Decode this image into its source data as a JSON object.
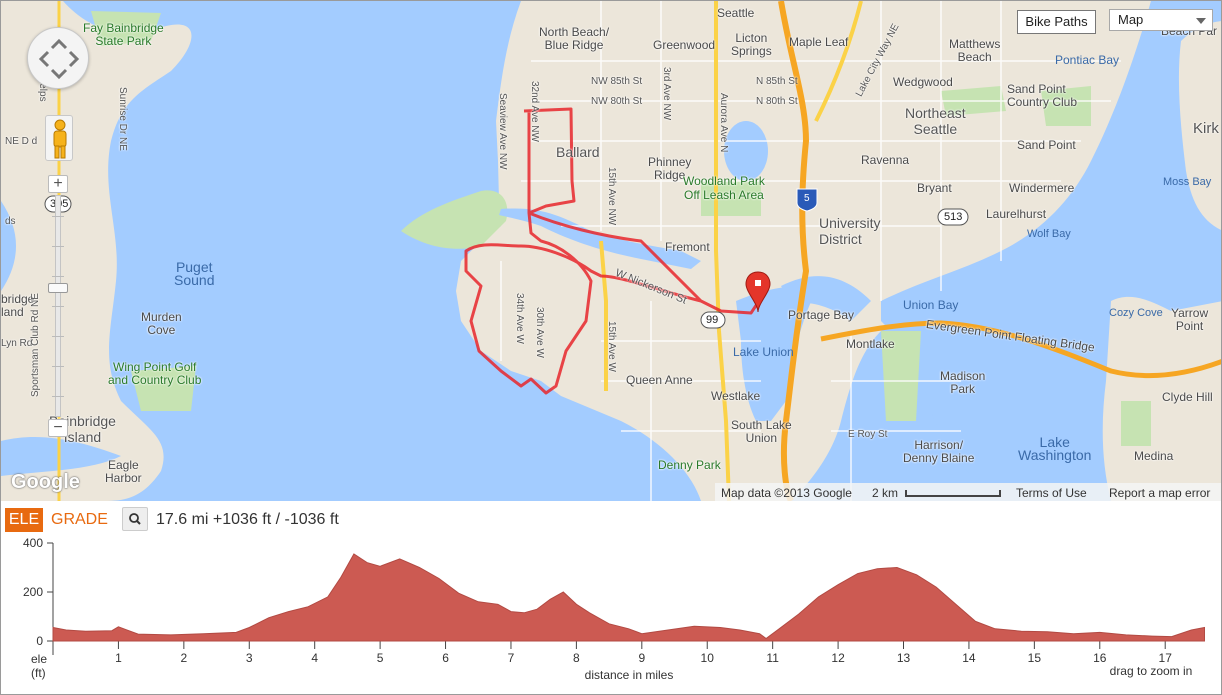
{
  "map": {
    "controls": {
      "zoom_in_label": "+",
      "zoom_out_label": "−",
      "bike_paths_label": "Bike Paths",
      "map_type_selected": "Map"
    },
    "logo": "Google",
    "attribution": {
      "map_data": "Map data ©2013 Google",
      "scale": "2 km",
      "terms": "Terms of Use",
      "report": "Report a map error"
    },
    "labels": {
      "seattle": "Seattle",
      "north_beach": "North Beach/\nBlue Ridge",
      "greenwood": "Greenwood",
      "licton": "Licton\nSprings",
      "maple_leaf": "Maple Leaf",
      "matthews": "Matthews\nBeach",
      "pontiac": "Pontiac Bay",
      "beach_park": "Beach Par",
      "fay": "Fay Bainbridge\nState Park",
      "nw85": "NW 85th St",
      "nw80": "NW 80th St",
      "n85": "N 85th St",
      "n80": "N 80th St",
      "wedgwood": "Wedgwood",
      "sand_point_cc": "Sand Point\nCountry Club",
      "northeast": "Northeast\nSeattle",
      "sand_point": "Sand Point",
      "kirk": "Kirk",
      "ballard": "Ballard",
      "phinney": "Phinney\nRidge",
      "ravenna": "Ravenna",
      "bryant": "Bryant",
      "windermere": "Windermere",
      "moss": "Moss Bay",
      "woodland": "Woodland Park\nOff Leash Area",
      "university": "University\nDistrict",
      "laurelhurst": "Laurelhurst",
      "wolf": "Wolf Bay",
      "fremont": "Fremont",
      "nickerson": "W Nickerson St",
      "puget": "Puget\nSound",
      "murden": "Murden\nCove",
      "union_bay": "Union Bay",
      "portage": "Portage Bay",
      "evergreen": "Evergreen Point Floating Bridge",
      "cozy": "Cozy Cove",
      "yarrow": "Yarrow\nPoint",
      "wing": "Wing Point Golf\nand Country Club",
      "lake_union": "Lake Union",
      "montlake": "Montlake",
      "queen_anne": "Queen Anne",
      "madison": "Madison\nPark",
      "clyde": "Clyde Hill",
      "bainbridge": "Bainbridge\nIsland",
      "bridge": "bridge\nland",
      "westlake": "Westlake",
      "south_lake": "South Lake\nUnion",
      "e_roy": "E Roy St",
      "harrison": "Harrison/\nDenny Blaine",
      "lake_wash": "Lake\nWashington",
      "eagle": "Eagle\nHarbor",
      "denny": "Denny Park",
      "medina": "Medina",
      "ne_dr": "NE D   d",
      "phelps": "Phelps",
      "sunrise": "Sunrise Dr NE",
      "seaview": "Seaview Ave NW",
      "ave32": "32nd Ave NW",
      "ave15": "15th Ave NW",
      "ave15w": "15th Ave W",
      "ave3": "3rd Ave NW",
      "aurora": "Aurora Ave N",
      "ave34": "34th Ave W",
      "ave30": "30th Ave W",
      "lake_city": "Lake City Way NE",
      "sportsman": "Sportsman Club Rd NE",
      "lyn": "Lyn Rd",
      "ds": "ds",
      "shield_305": "305",
      "shield_5": "5",
      "shield_513": "513",
      "shield_99": "99"
    }
  },
  "elevation": {
    "tab_ele": "ELE",
    "tab_grade": "GRADE",
    "stats": "17.6 mi +1036 ft / -1036 ft",
    "zoom_hint": "drag to zoom in"
  },
  "chart_data": {
    "type": "area",
    "xlabel": "distance in miles",
    "ylabel": "ele\n(ft)",
    "xlim": [
      0,
      17.7
    ],
    "ylim": [
      0,
      400
    ],
    "x_ticks": [
      1,
      2,
      3,
      4,
      5,
      6,
      7,
      8,
      9,
      10,
      11,
      12,
      13,
      14,
      15,
      16,
      17
    ],
    "y_ticks": [
      0,
      200,
      400
    ],
    "color": "#cc5a52",
    "x": [
      0,
      0.2,
      0.5,
      0.9,
      1.0,
      1.3,
      1.8,
      2.3,
      2.8,
      3.0,
      3.3,
      3.6,
      3.9,
      4.2,
      4.4,
      4.6,
      4.8,
      5.0,
      5.3,
      5.6,
      5.9,
      6.2,
      6.5,
      6.8,
      7.0,
      7.2,
      7.4,
      7.6,
      7.8,
      8.0,
      8.2,
      8.5,
      8.8,
      9.0,
      9.4,
      9.8,
      10.2,
      10.5,
      10.8,
      10.9,
      11.1,
      11.4,
      11.7,
      12.0,
      12.3,
      12.6,
      12.9,
      13.2,
      13.5,
      13.8,
      14.1,
      14.4,
      14.8,
      15.2,
      15.6,
      16.0,
      16.4,
      16.8,
      17.1,
      17.4,
      17.6
    ],
    "y": [
      55,
      45,
      40,
      42,
      58,
      28,
      25,
      30,
      35,
      55,
      95,
      120,
      140,
      180,
      260,
      355,
      320,
      305,
      335,
      300,
      255,
      195,
      160,
      150,
      120,
      115,
      130,
      170,
      200,
      150,
      115,
      70,
      50,
      30,
      45,
      60,
      55,
      45,
      30,
      10,
      50,
      110,
      180,
      230,
      275,
      295,
      300,
      270,
      220,
      150,
      80,
      50,
      40,
      38,
      30,
      35,
      25,
      20,
      18,
      45,
      55
    ]
  }
}
